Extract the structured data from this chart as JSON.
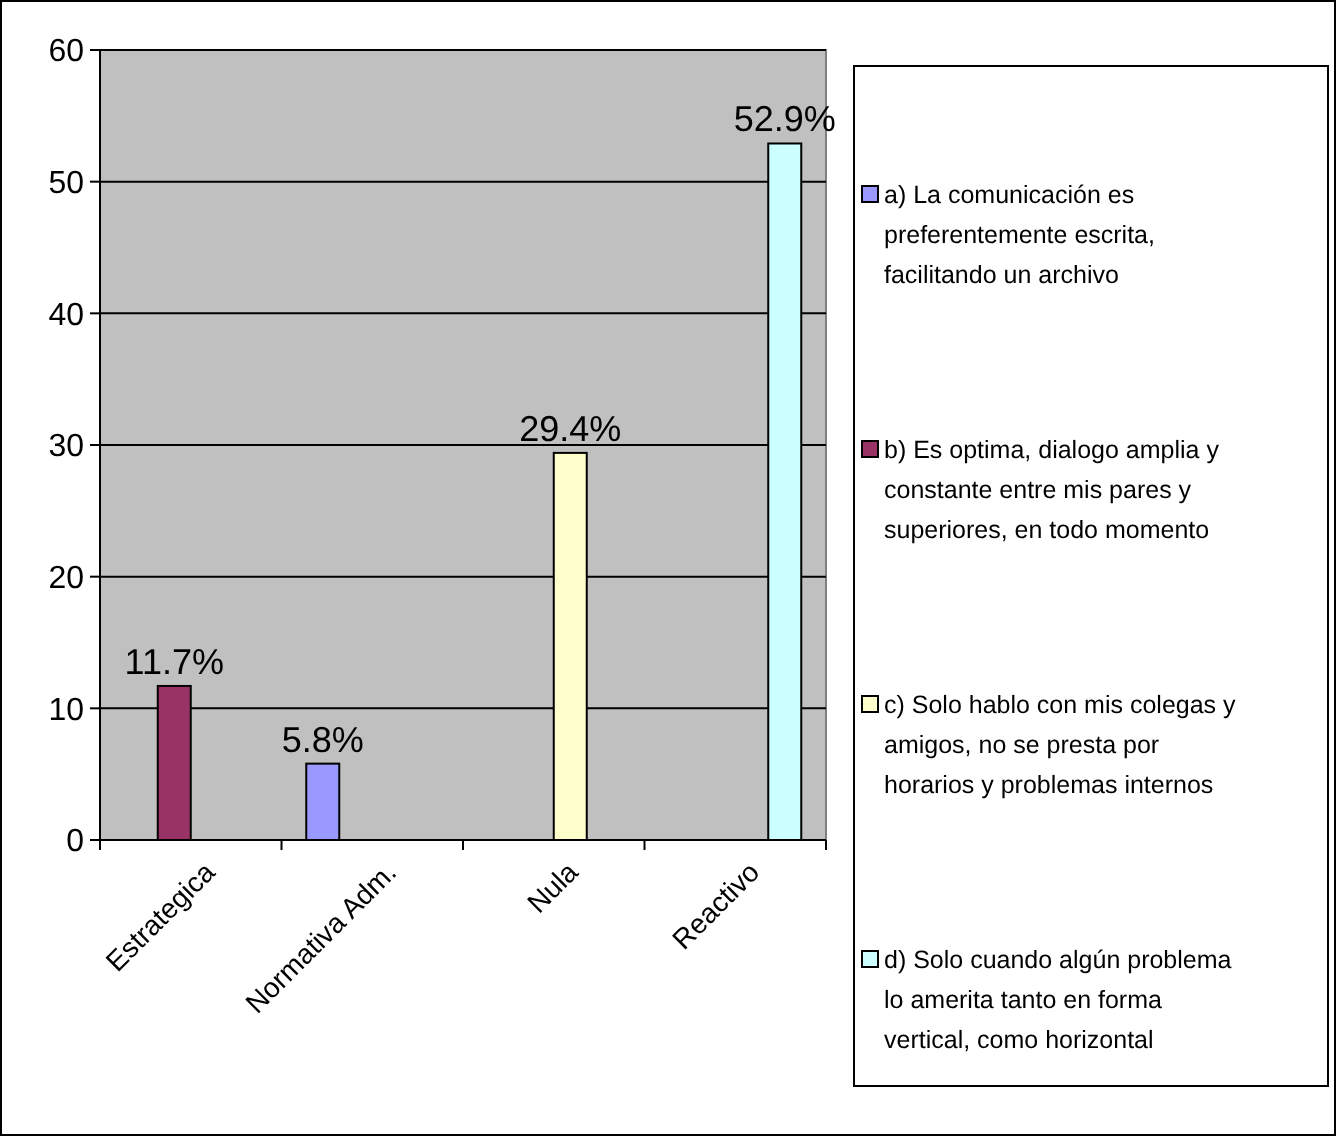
{
  "chart_data": {
    "type": "bar",
    "categories": [
      "Estrategica",
      "Normativa Adm.",
      "Nula",
      "Reactivo"
    ],
    "series": [
      {
        "name": "a) La comunicación es preferentemente escrita, facilitando un archivo",
        "color": "#9999ff",
        "values": [
          null,
          5.8,
          null,
          null
        ],
        "value_labels": [
          null,
          "5.8%",
          null,
          null
        ]
      },
      {
        "name": "b) Es optima, dialogo amplia y constante entre mis pares y superiores, en todo momento",
        "color": "#993366",
        "values": [
          11.7,
          null,
          null,
          null
        ],
        "value_labels": [
          "11.7%",
          null,
          null,
          null
        ]
      },
      {
        "name": "c) Solo hablo con mis colegas y amigos, no se presta por horarios y problemas internos",
        "color": "#ffffcc",
        "values": [
          null,
          null,
          29.4,
          null
        ],
        "value_labels": [
          null,
          null,
          "29.4%",
          null
        ]
      },
      {
        "name": "d) Solo cuando algún problema lo amerita tanto en forma vertical, como horizontal",
        "color": "#ccffff",
        "values": [
          null,
          null,
          null,
          52.9
        ],
        "value_labels": [
          null,
          null,
          null,
          "52.9%"
        ]
      }
    ],
    "ylim": [
      0,
      60
    ],
    "yticks": [
      0,
      10,
      20,
      30,
      40,
      50,
      60
    ],
    "grid": "y",
    "legend": "right"
  }
}
